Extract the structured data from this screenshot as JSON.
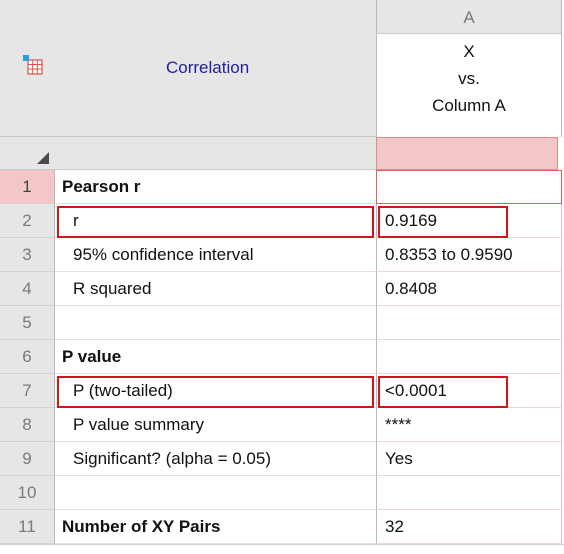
{
  "column": {
    "letter": "A",
    "title_lines": [
      "X",
      "vs.",
      "Column A"
    ]
  },
  "table": {
    "title": "Correlation"
  },
  "icons": {
    "table_icon": "results-table-icon",
    "corner_icon": "sort-corner-icon"
  },
  "colors": {
    "title_blue": "#1f1fa0",
    "highlight_red": "#d2161c",
    "selection_pink": "#f3c7c7"
  },
  "rows": [
    {
      "num": "1",
      "label": "Pearson r",
      "value": ""
    },
    {
      "num": "2",
      "label": "r",
      "value": "0.9169"
    },
    {
      "num": "3",
      "label": "95% confidence interval",
      "value": "0.8353 to 0.9590"
    },
    {
      "num": "4",
      "label": "R squared",
      "value": "0.8408"
    },
    {
      "num": "5",
      "label": "",
      "value": ""
    },
    {
      "num": "6",
      "label": "P value",
      "value": ""
    },
    {
      "num": "7",
      "label": "P (two-tailed)",
      "value": "<0.0001"
    },
    {
      "num": "8",
      "label": "P value summary",
      "value": "****"
    },
    {
      "num": "9",
      "label": "Significant? (alpha = 0.05)",
      "value": "Yes"
    },
    {
      "num": "10",
      "label": "",
      "value": ""
    },
    {
      "num": "11",
      "label": "Number of XY Pairs",
      "value": "32"
    }
  ]
}
